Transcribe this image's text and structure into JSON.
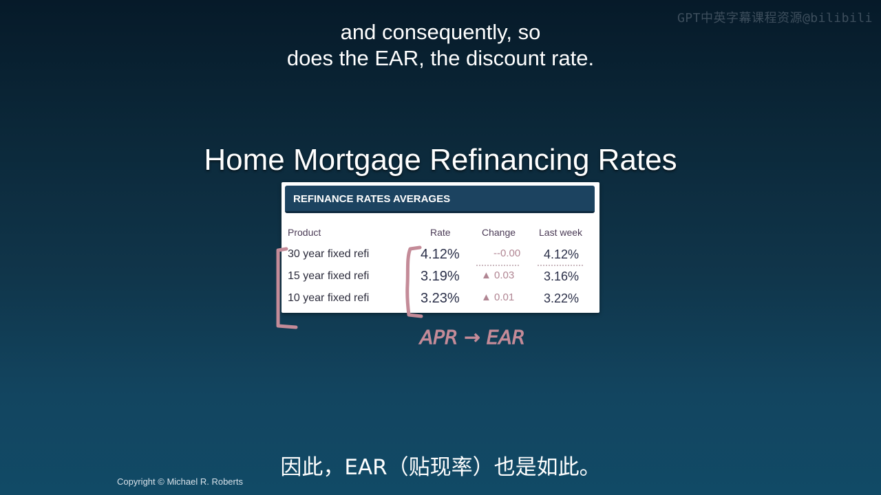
{
  "watermark": "GPT中英字幕课程资源@bilibili",
  "subtitles": {
    "top_line1": "and consequently, so",
    "top_line2": "does the EAR, the discount rate.",
    "bottom": "因此，EAR（贴现率）也是如此。"
  },
  "slide": {
    "title": "Home Mortgage Refinancing Rates",
    "copyright": "Copyright © Michael R. Roberts"
  },
  "rates_table": {
    "header": "REFINANCE RATES AVERAGES",
    "columns": [
      "Product",
      "Rate",
      "Change",
      "Last week"
    ],
    "rows": [
      {
        "product": "30 year fixed refi",
        "rate": "4.12%",
        "change": "0.00",
        "change_icon": "flat-arrow-icon",
        "last_week": "4.12%"
      },
      {
        "product": "15 year fixed refi",
        "rate": "3.19%",
        "change": "0.03",
        "change_icon": "up-arrow-icon",
        "last_week": "3.16%"
      },
      {
        "product": "10 year fixed refi",
        "rate": "3.23%",
        "change": "0.01",
        "change_icon": "up-arrow-icon",
        "last_week": "3.22%"
      }
    ]
  },
  "annotation": {
    "text": "APR → EAR",
    "color": "#c48b98"
  }
}
